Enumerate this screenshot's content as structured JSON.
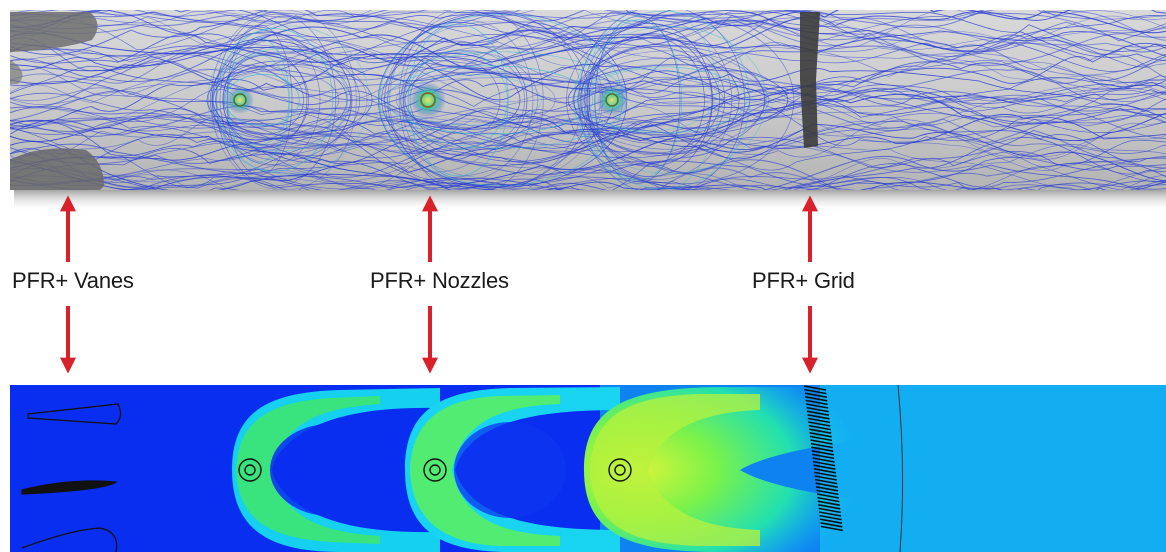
{
  "labels": {
    "vanes": "PFR+ Vanes",
    "nozzles": "PFR+ Nozzles",
    "grid": "PFR+ Grid"
  },
  "colors": {
    "arrow": "#d9212b",
    "streamline": "#2a3fd0",
    "panel_gray": "#bfbfbf",
    "contour_deep": "#0a2ef0",
    "contour_cyan": "#16d8f2",
    "contour_green": "#3ef26a",
    "contour_yellow": "#d6f53a"
  }
}
